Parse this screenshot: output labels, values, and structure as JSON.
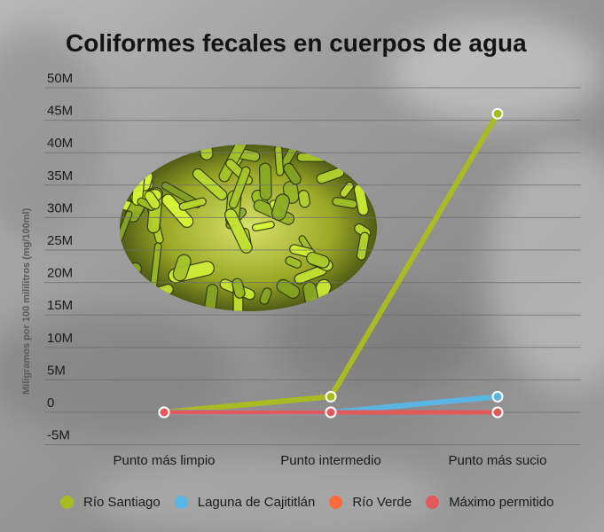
{
  "chart_data": {
    "type": "line",
    "title": "Coliformes fecales en cuerpos de agua",
    "xlabel": "",
    "ylabel": "Miligramos por 100 mililitros (mg/100ml)",
    "categories": [
      "Punto más limpio",
      "Punto intermedio",
      "Punto más sucio"
    ],
    "y_ticks": [
      "50M",
      "45M",
      "40M",
      "35M",
      "30M",
      "25M",
      "20M",
      "15M",
      "10M",
      "5M",
      "0",
      "-5M"
    ],
    "ylim": [
      -5000000,
      50000000
    ],
    "grid": true,
    "legend_position": "bottom",
    "series": [
      {
        "name": "Río Santiago",
        "color": "#a8bb22",
        "values": [
          0,
          2400000,
          46000000
        ]
      },
      {
        "name": "Laguna de Cajititlán",
        "color": "#5ab4e4",
        "values": [
          0,
          0,
          2400000
        ]
      },
      {
        "name": "Río Verde",
        "color": "#ff6a3d",
        "values": [
          0,
          0,
          0
        ]
      },
      {
        "name": "Máximo permitido",
        "color": "#e05a5a",
        "values": [
          0,
          0,
          0
        ]
      }
    ],
    "decoration": "bacteria-illustration"
  }
}
